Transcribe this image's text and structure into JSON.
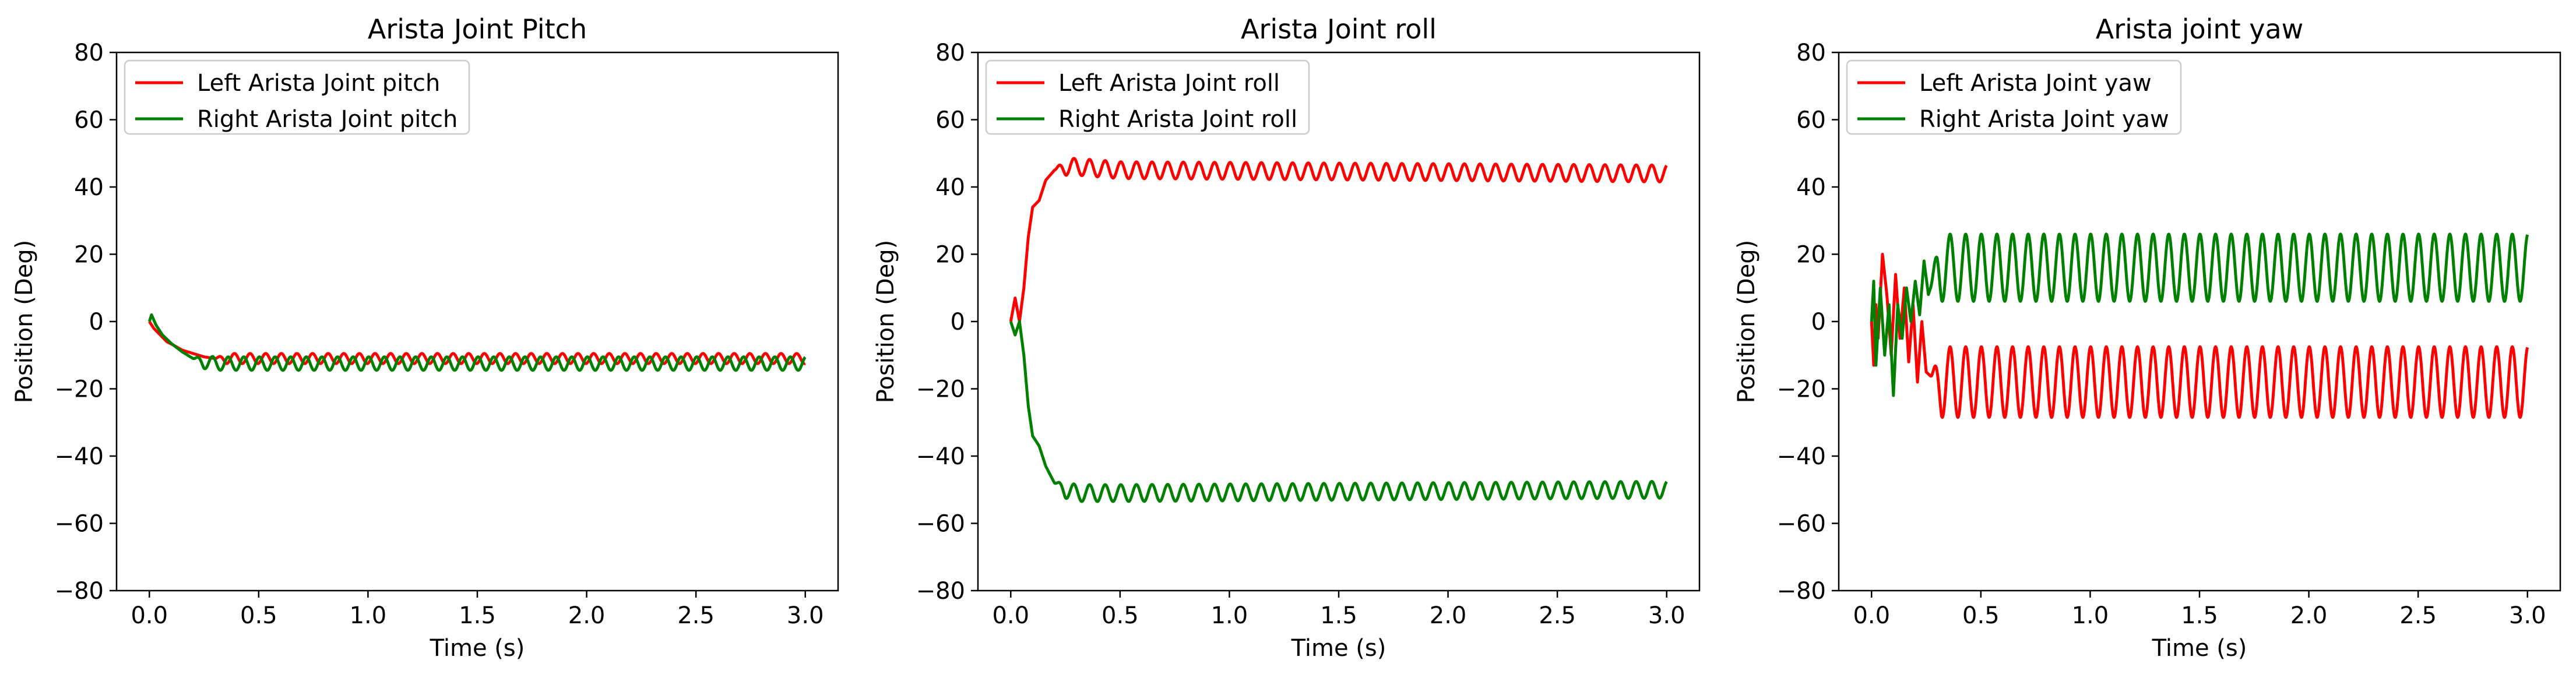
{
  "colors": {
    "left": "#ff0000",
    "right": "#008000",
    "axis": "#000000",
    "legend_border": "#cccccc"
  },
  "chart_data": [
    {
      "type": "line",
      "title": "Arista Joint Pitch",
      "xlabel": "Time (s)",
      "ylabel": "Position (Deg)",
      "xlim": [
        -0.15,
        3.15
      ],
      "ylim": [
        -80,
        80
      ],
      "xticks": [
        0.0,
        0.5,
        1.0,
        1.5,
        2.0,
        2.5,
        3.0
      ],
      "xtick_labels": [
        "0.0",
        "0.5",
        "1.0",
        "1.5",
        "2.0",
        "2.5",
        "3.0"
      ],
      "yticks": [
        -80,
        -60,
        -40,
        -20,
        0,
        20,
        40,
        60,
        80
      ],
      "ytick_labels": [
        "−80",
        "−60",
        "−40",
        "−20",
        "0",
        "20",
        "40",
        "60",
        "80"
      ],
      "grid": false,
      "legend_position": "upper-left",
      "series": [
        {
          "name": "Left Arista Joint pitch",
          "color": "#ff0000",
          "x": [
            0.0,
            0.02,
            0.05,
            0.08,
            0.11,
            0.15,
            0.2,
            0.25,
            0.3,
            3.0
          ],
          "y": [
            0.0,
            -2.0,
            -4.0,
            -6.0,
            -7.0,
            -8.5,
            -9.5,
            -10.5,
            -11.0,
            -11.0
          ],
          "oscillation": {
            "amplitude": 1.5,
            "frequency": 14,
            "start": 0.3
          }
        },
        {
          "name": "Right Arista Joint pitch",
          "color": "#008000",
          "x": [
            0.0,
            0.01,
            0.03,
            0.06,
            0.1,
            0.15,
            0.2,
            0.25,
            0.3,
            3.0
          ],
          "y": [
            0.0,
            2.0,
            -1.0,
            -4.0,
            -6.5,
            -9.0,
            -11.0,
            -12.0,
            -12.5,
            -12.5
          ],
          "oscillation": {
            "amplitude": 2.0,
            "frequency": 14,
            "start": 0.2
          }
        }
      ]
    },
    {
      "type": "line",
      "title": "Arista Joint roll",
      "xlabel": "Time (s)",
      "ylabel": "Position (Deg)",
      "xlim": [
        -0.15,
        3.15
      ],
      "ylim": [
        -80,
        80
      ],
      "xticks": [
        0.0,
        0.5,
        1.0,
        1.5,
        2.0,
        2.5,
        3.0
      ],
      "xtick_labels": [
        "0.0",
        "0.5",
        "1.0",
        "1.5",
        "2.0",
        "2.5",
        "3.0"
      ],
      "yticks": [
        -80,
        -60,
        -40,
        -20,
        0,
        20,
        40,
        60,
        80
      ],
      "ytick_labels": [
        "−80",
        "−60",
        "−40",
        "−20",
        "0",
        "20",
        "40",
        "60",
        "80"
      ],
      "grid": false,
      "legend_position": "upper-left",
      "series": [
        {
          "name": "Left Arista Joint roll",
          "color": "#ff0000",
          "x": [
            0.0,
            0.02,
            0.04,
            0.06,
            0.08,
            0.1,
            0.13,
            0.16,
            0.2,
            0.25,
            0.3,
            0.5,
            3.0
          ],
          "y": [
            0.0,
            7.0,
            0.0,
            10.0,
            25.0,
            34.0,
            36.0,
            42.0,
            45.0,
            46.0,
            46.0,
            45.0,
            44.0
          ],
          "oscillation": {
            "amplitude": 2.5,
            "frequency": 14,
            "start": 0.2
          }
        },
        {
          "name": "Right Arista Joint roll",
          "color": "#008000",
          "x": [
            0.0,
            0.02,
            0.04,
            0.06,
            0.08,
            0.1,
            0.13,
            0.16,
            0.2,
            0.25,
            0.3,
            0.5,
            3.0
          ],
          "y": [
            0.0,
            -4.0,
            0.0,
            -10.0,
            -25.0,
            -34.0,
            -37.0,
            -43.0,
            -48.0,
            -50.0,
            -51.0,
            -51.0,
            -50.0
          ],
          "oscillation": {
            "amplitude": 2.5,
            "frequency": 14,
            "start": 0.2
          }
        }
      ]
    },
    {
      "type": "line",
      "title": "Arista joint yaw",
      "xlabel": "Time (s)",
      "ylabel": "Position (Deg)",
      "xlim": [
        -0.15,
        3.15
      ],
      "ylim": [
        -80,
        80
      ],
      "xticks": [
        0.0,
        0.5,
        1.0,
        1.5,
        2.0,
        2.5,
        3.0
      ],
      "xtick_labels": [
        "0.0",
        "0.5",
        "1.0",
        "1.5",
        "2.0",
        "2.5",
        "3.0"
      ],
      "yticks": [
        -80,
        -60,
        -40,
        -20,
        0,
        20,
        40,
        60,
        80
      ],
      "ytick_labels": [
        "−80",
        "−60",
        "−40",
        "−20",
        "0",
        "20",
        "40",
        "60",
        "80"
      ],
      "grid": false,
      "legend_position": "upper-left",
      "series": [
        {
          "name": "Left Arista Joint yaw",
          "color": "#ff0000",
          "x": [
            0.0,
            0.01,
            0.02,
            0.03,
            0.05,
            0.07,
            0.09,
            0.11,
            0.13,
            0.15,
            0.17,
            0.19,
            0.21,
            0.23,
            0.25,
            0.3,
            3.0
          ],
          "y": [
            0.0,
            -13.0,
            5.0,
            -5.0,
            20.0,
            8.0,
            -10.0,
            14.0,
            -5.0,
            10.0,
            -12.0,
            5.0,
            -18.0,
            0.0,
            -15.0,
            -18.0,
            -18.0
          ],
          "oscillation": {
            "amplitude": 10.5,
            "frequency": 14,
            "start": 0.27
          }
        },
        {
          "name": "Right Arista Joint yaw",
          "color": "#008000",
          "x": [
            0.0,
            0.01,
            0.02,
            0.04,
            0.06,
            0.08,
            0.1,
            0.12,
            0.14,
            0.16,
            0.18,
            0.2,
            0.22,
            0.24,
            0.26,
            0.3,
            3.0
          ],
          "y": [
            0.0,
            12.0,
            -13.0,
            10.0,
            -10.0,
            5.0,
            -22.0,
            5.0,
            -5.0,
            10.0,
            0.0,
            12.0,
            2.0,
            18.0,
            8.0,
            16.0,
            16.0
          ],
          "oscillation": {
            "amplitude": 10.0,
            "frequency": 14,
            "start": 0.27
          }
        }
      ]
    }
  ]
}
